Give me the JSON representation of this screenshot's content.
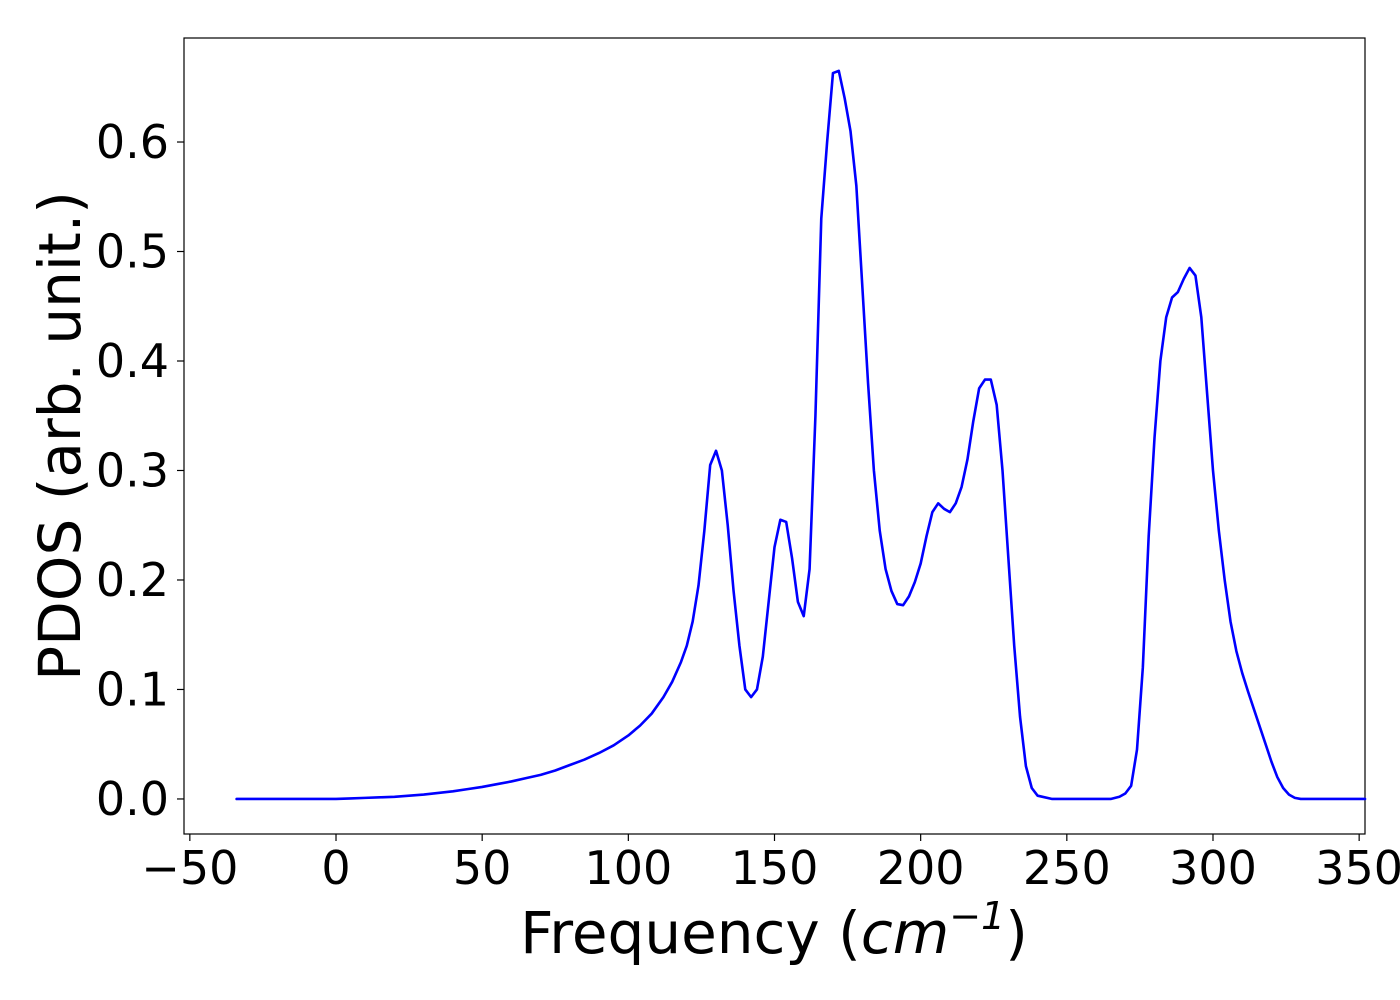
{
  "chart_data": {
    "type": "line",
    "title": "",
    "xlabel_prefix": "Frequency (",
    "xlabel_math": "cm",
    "xlabel_exp": "−1",
    "xlabel_suffix": ")",
    "ylabel": "PDOS (arb. unit.)",
    "xlim": [
      -52,
      352
    ],
    "ylim": [
      -0.032,
      0.695
    ],
    "xticks": [
      -50,
      0,
      50,
      100,
      150,
      200,
      250,
      300,
      350
    ],
    "xtick_labels": [
      "−50",
      "0",
      "50",
      "100",
      "150",
      "200",
      "250",
      "300",
      "350"
    ],
    "yticks": [
      0.0,
      0.1,
      0.2,
      0.3,
      0.4,
      0.5,
      0.6
    ],
    "ytick_labels": [
      "0.0",
      "0.1",
      "0.2",
      "0.3",
      "0.4",
      "0.5",
      "0.6"
    ],
    "grid": false,
    "line_color": "#0000ff",
    "series": [
      {
        "x": [
          -34,
          -20,
          0,
          5,
          10,
          15,
          20,
          25,
          30,
          35,
          40,
          45,
          50,
          55,
          60,
          65,
          70,
          75,
          80,
          85,
          90,
          95,
          100,
          104,
          108,
          112,
          115,
          118,
          120,
          122,
          124,
          126,
          128,
          130,
          132,
          134,
          136,
          138,
          140,
          142,
          144,
          146,
          148,
          150,
          152,
          154,
          156,
          158,
          160,
          162,
          164,
          166,
          168,
          170,
          172,
          174,
          176,
          178,
          180,
          182,
          184,
          186,
          188,
          190,
          192,
          194,
          196,
          198,
          200,
          202,
          204,
          206,
          208,
          210,
          212,
          214,
          216,
          218,
          220,
          222,
          224,
          226,
          228,
          230,
          232,
          234,
          236,
          238,
          240,
          245,
          250,
          255,
          260,
          265,
          268,
          270,
          272,
          274,
          276,
          278,
          280,
          282,
          284,
          286,
          288,
          290,
          292,
          294,
          296,
          298,
          300,
          302,
          304,
          306,
          308,
          310,
          312,
          314,
          316,
          318,
          320,
          322,
          324,
          326,
          328,
          330,
          335,
          340,
          345,
          352
        ],
        "y": [
          0.0,
          0.0,
          0.0,
          0.0005,
          0.001,
          0.0015,
          0.002,
          0.003,
          0.004,
          0.0055,
          0.007,
          0.009,
          0.011,
          0.0135,
          0.016,
          0.019,
          0.022,
          0.026,
          0.031,
          0.036,
          0.042,
          0.049,
          0.058,
          0.067,
          0.078,
          0.093,
          0.107,
          0.125,
          0.14,
          0.162,
          0.195,
          0.245,
          0.305,
          0.318,
          0.3,
          0.25,
          0.19,
          0.14,
          0.1,
          0.093,
          0.1,
          0.13,
          0.18,
          0.23,
          0.255,
          0.253,
          0.22,
          0.18,
          0.167,
          0.21,
          0.35,
          0.53,
          0.6,
          0.663,
          0.665,
          0.64,
          0.61,
          0.56,
          0.47,
          0.38,
          0.3,
          0.245,
          0.21,
          0.19,
          0.178,
          0.177,
          0.185,
          0.198,
          0.215,
          0.24,
          0.262,
          0.27,
          0.265,
          0.262,
          0.27,
          0.285,
          0.31,
          0.345,
          0.375,
          0.383,
          0.383,
          0.36,
          0.3,
          0.22,
          0.14,
          0.075,
          0.03,
          0.01,
          0.003,
          0.0,
          0.0,
          0.0,
          0.0,
          0.0,
          0.002,
          0.005,
          0.012,
          0.045,
          0.12,
          0.24,
          0.33,
          0.4,
          0.44,
          0.458,
          0.463,
          0.475,
          0.485,
          0.478,
          0.44,
          0.37,
          0.3,
          0.245,
          0.2,
          0.162,
          0.135,
          0.115,
          0.098,
          0.082,
          0.066,
          0.05,
          0.034,
          0.02,
          0.01,
          0.004,
          0.001,
          0.0,
          0.0,
          0.0,
          0.0,
          0.0
        ]
      }
    ]
  }
}
